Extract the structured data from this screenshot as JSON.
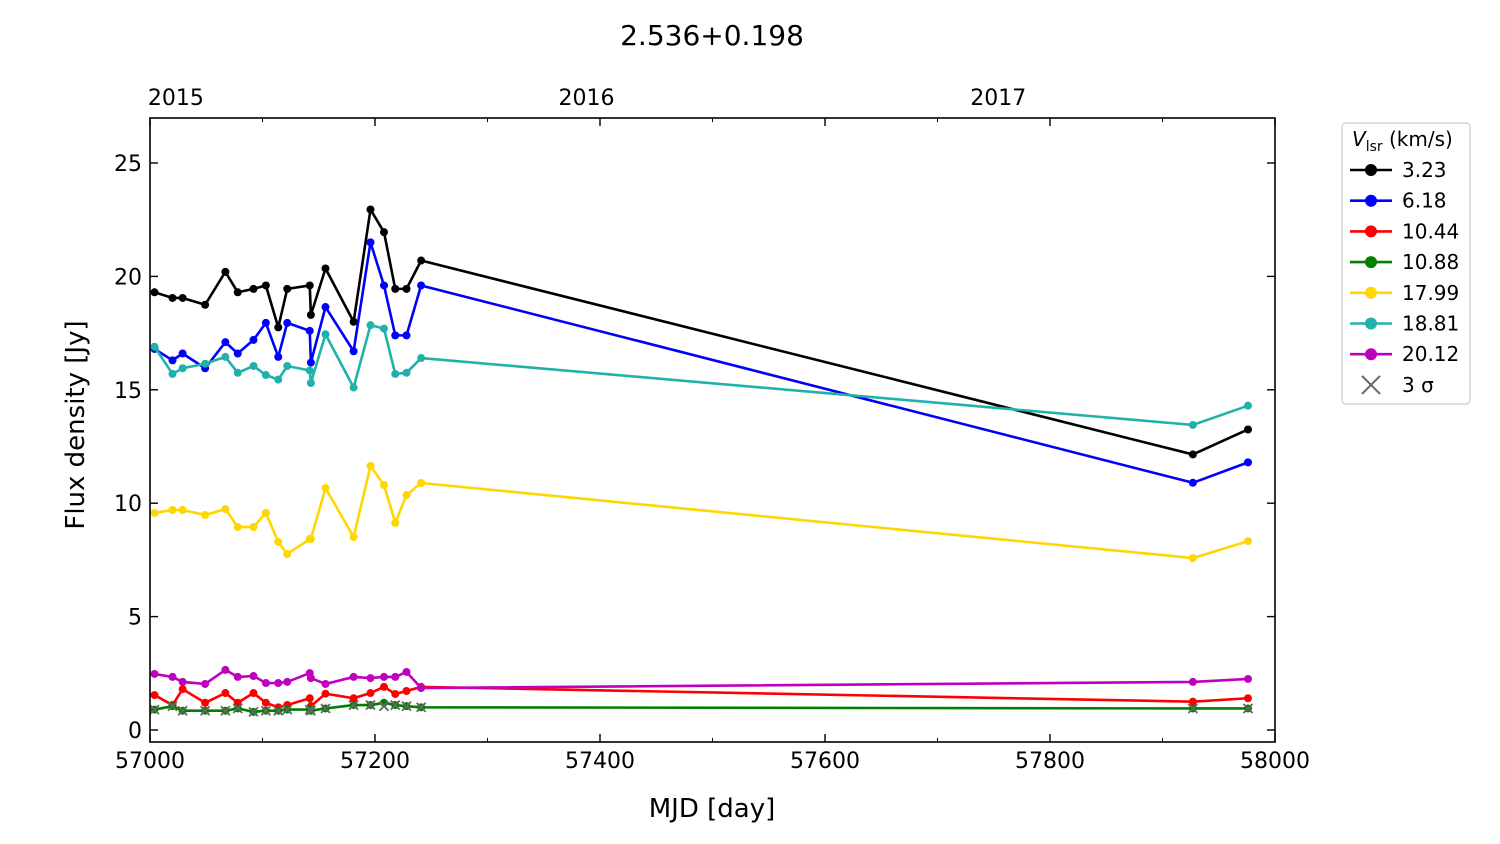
{
  "chart_data": {
    "type": "line",
    "title": "2.536+0.198",
    "xlabel": "MJD [day]",
    "ylabel": "Flux density [Jy]",
    "xlim": [
      57000,
      58000
    ],
    "ylim": [
      -0.5,
      27
    ],
    "xticks": [
      57000,
      57200,
      57400,
      57600,
      57800,
      58000
    ],
    "yticks": [
      0,
      5,
      10,
      15,
      20,
      25
    ],
    "top_axis": {
      "ticks": [
        {
          "label": "2015",
          "mjd": 57023
        },
        {
          "label": "2016",
          "mjd": 57388
        },
        {
          "label": "2017",
          "mjd": 57754
        }
      ]
    },
    "grid": false,
    "legend": {
      "placement": "outside-right",
      "title_main": "V",
      "title_sub": "lsr",
      "title_unit": " (km/s)",
      "sigma_label": "3 σ"
    },
    "x": [
      57004,
      57020,
      57029,
      57049,
      57067,
      57078,
      57092,
      57103,
      57114,
      57122,
      57142,
      57143,
      57156,
      57181,
      57196,
      57208,
      57218,
      57228,
      57241,
      57927,
      57976
    ],
    "series": [
      {
        "name": "3.23",
        "color": "#000000",
        "values": [
          19.3,
          19.05,
          19.05,
          18.75,
          20.2,
          19.3,
          19.45,
          19.6,
          17.75,
          19.45,
          19.6,
          18.3,
          20.35,
          18.0,
          22.95,
          21.95,
          19.45,
          19.45,
          20.7,
          12.15,
          13.25
        ]
      },
      {
        "name": "6.18",
        "color": "#0000ff",
        "values": [
          16.8,
          16.3,
          16.6,
          15.95,
          17.1,
          16.6,
          17.2,
          17.95,
          16.45,
          17.95,
          17.6,
          16.2,
          18.65,
          16.7,
          21.5,
          19.6,
          17.4,
          17.4,
          19.6,
          10.9,
          11.8
        ]
      },
      {
        "name": "10.44",
        "color": "#ff0000",
        "values": [
          1.54,
          1.1,
          1.8,
          1.2,
          1.63,
          1.2,
          1.63,
          1.2,
          1.0,
          1.1,
          1.4,
          1.05,
          1.6,
          1.4,
          1.63,
          1.9,
          1.59,
          1.72,
          1.9,
          1.25,
          1.4
        ]
      },
      {
        "name": "10.88",
        "color": "#008000",
        "values": [
          0.9,
          1.05,
          0.85,
          0.85,
          0.85,
          0.95,
          0.8,
          0.85,
          0.85,
          0.9,
          0.9,
          0.85,
          0.95,
          1.1,
          1.1,
          1.2,
          1.1,
          1.05,
          1.0,
          0.95,
          0.95
        ]
      },
      {
        "name": "17.99",
        "color": "#ffd700",
        "values": [
          9.57,
          9.7,
          9.7,
          9.48,
          9.74,
          8.95,
          8.95,
          9.57,
          8.29,
          7.76,
          8.42,
          8.42,
          10.67,
          8.51,
          11.64,
          10.8,
          9.13,
          10.36,
          10.89,
          7.58,
          8.33
        ]
      },
      {
        "name": "18.81",
        "color": "#20b2aa",
        "values": [
          16.9,
          15.7,
          15.95,
          16.15,
          16.45,
          15.75,
          16.05,
          15.65,
          15.45,
          16.05,
          15.85,
          15.3,
          17.45,
          15.1,
          17.85,
          17.7,
          15.7,
          15.75,
          16.4,
          13.45,
          14.3
        ]
      },
      {
        "name": "20.12",
        "color": "#bf00bf",
        "values": [
          2.47,
          2.34,
          2.12,
          2.03,
          2.65,
          2.34,
          2.38,
          2.07,
          2.07,
          2.12,
          2.51,
          2.29,
          2.03,
          2.34,
          2.29,
          2.34,
          2.34,
          2.56,
          1.85,
          2.12,
          2.25
        ]
      }
    ],
    "sigma3": {
      "color": "#666666",
      "x": [
        57004,
        57020,
        57029,
        57049,
        57067,
        57078,
        57092,
        57103,
        57114,
        57122,
        57142,
        57143,
        57156,
        57181,
        57196,
        57208,
        57218,
        57228,
        57241,
        57927,
        57976
      ],
      "values": [
        0.9,
        1.05,
        0.85,
        0.85,
        0.85,
        0.95,
        0.8,
        0.85,
        0.85,
        0.9,
        0.9,
        0.85,
        0.95,
        1.1,
        1.1,
        1.05,
        1.1,
        1.05,
        1.0,
        0.95,
        0.95
      ]
    }
  }
}
